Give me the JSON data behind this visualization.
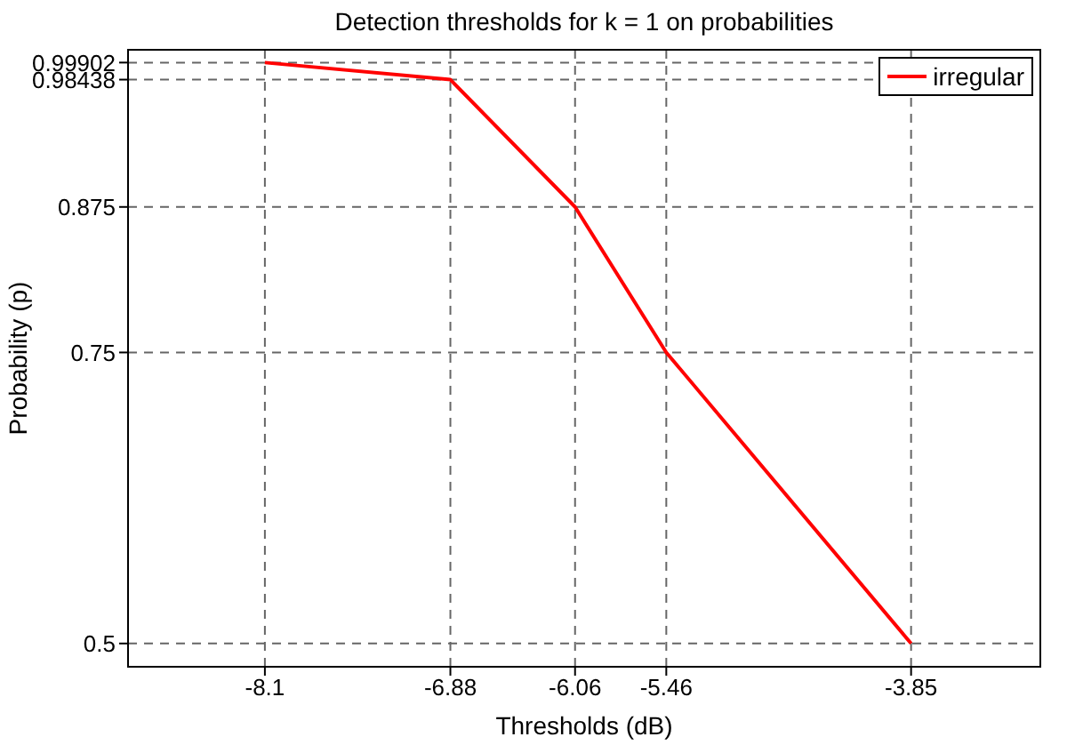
{
  "chart_data": {
    "type": "line",
    "title": "Detection thresholds for k = 1 on probabilities",
    "xlabel": "Thresholds (dB)",
    "ylabel": "Probability (p)",
    "x": [
      -8.1,
      -6.88,
      -6.06,
      -5.46,
      -3.85
    ],
    "series": [
      {
        "name": "irregular",
        "color": "#ff0000",
        "values": [
          0.99902,
          0.98438,
          0.875,
          0.75,
          0.5
        ]
      }
    ],
    "xlim": [
      -9,
      -3
    ],
    "xticks": [
      -8.1,
      -6.88,
      -6.06,
      -5.46,
      -3.85
    ],
    "ylim": [
      0.48,
      1.01
    ],
    "yticks": [
      0.5,
      0.75,
      0.875,
      0.98438,
      0.99902
    ],
    "grid": true,
    "legend": "top right",
    "marker": "none",
    "line_style": "solid"
  }
}
